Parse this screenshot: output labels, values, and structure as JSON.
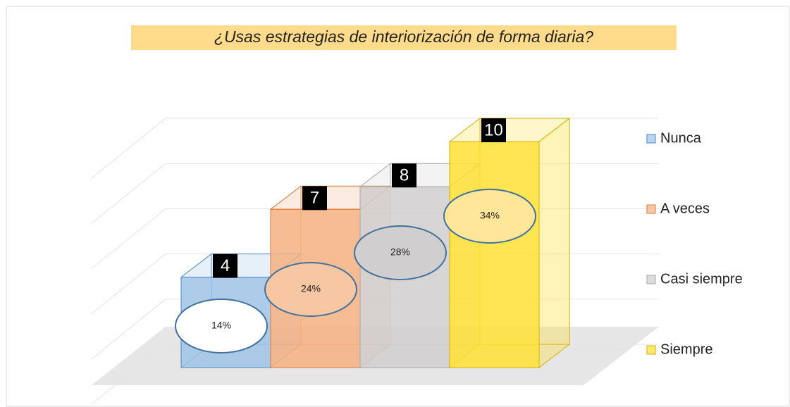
{
  "chart_data": {
    "type": "bar3d",
    "title": "¿Usas estrategias de interiorización de forma diaria?",
    "categories": [
      "Nunca",
      "A veces",
      "Casi siempre",
      "Siempre"
    ],
    "values": [
      4,
      7,
      8,
      10
    ],
    "shares": [
      14,
      24,
      28,
      34
    ],
    "share_labels": [
      "14%",
      "24%",
      "28%",
      "34%"
    ],
    "colors": [
      "#9dc3e6",
      "#f4b183",
      "#d0cece",
      "#ffe033"
    ],
    "edge_colors": [
      "#4a86c8",
      "#e0783a",
      "#a6a6a6",
      "#d9ae00"
    ],
    "share_colors": [
      "#ffffff",
      "#f7c6a3",
      "#d0cece",
      "#ffe699"
    ],
    "ylim": [
      0,
      10
    ],
    "yticks": [
      0,
      2,
      4,
      6,
      8,
      10
    ],
    "grid": true,
    "legend": "right"
  }
}
